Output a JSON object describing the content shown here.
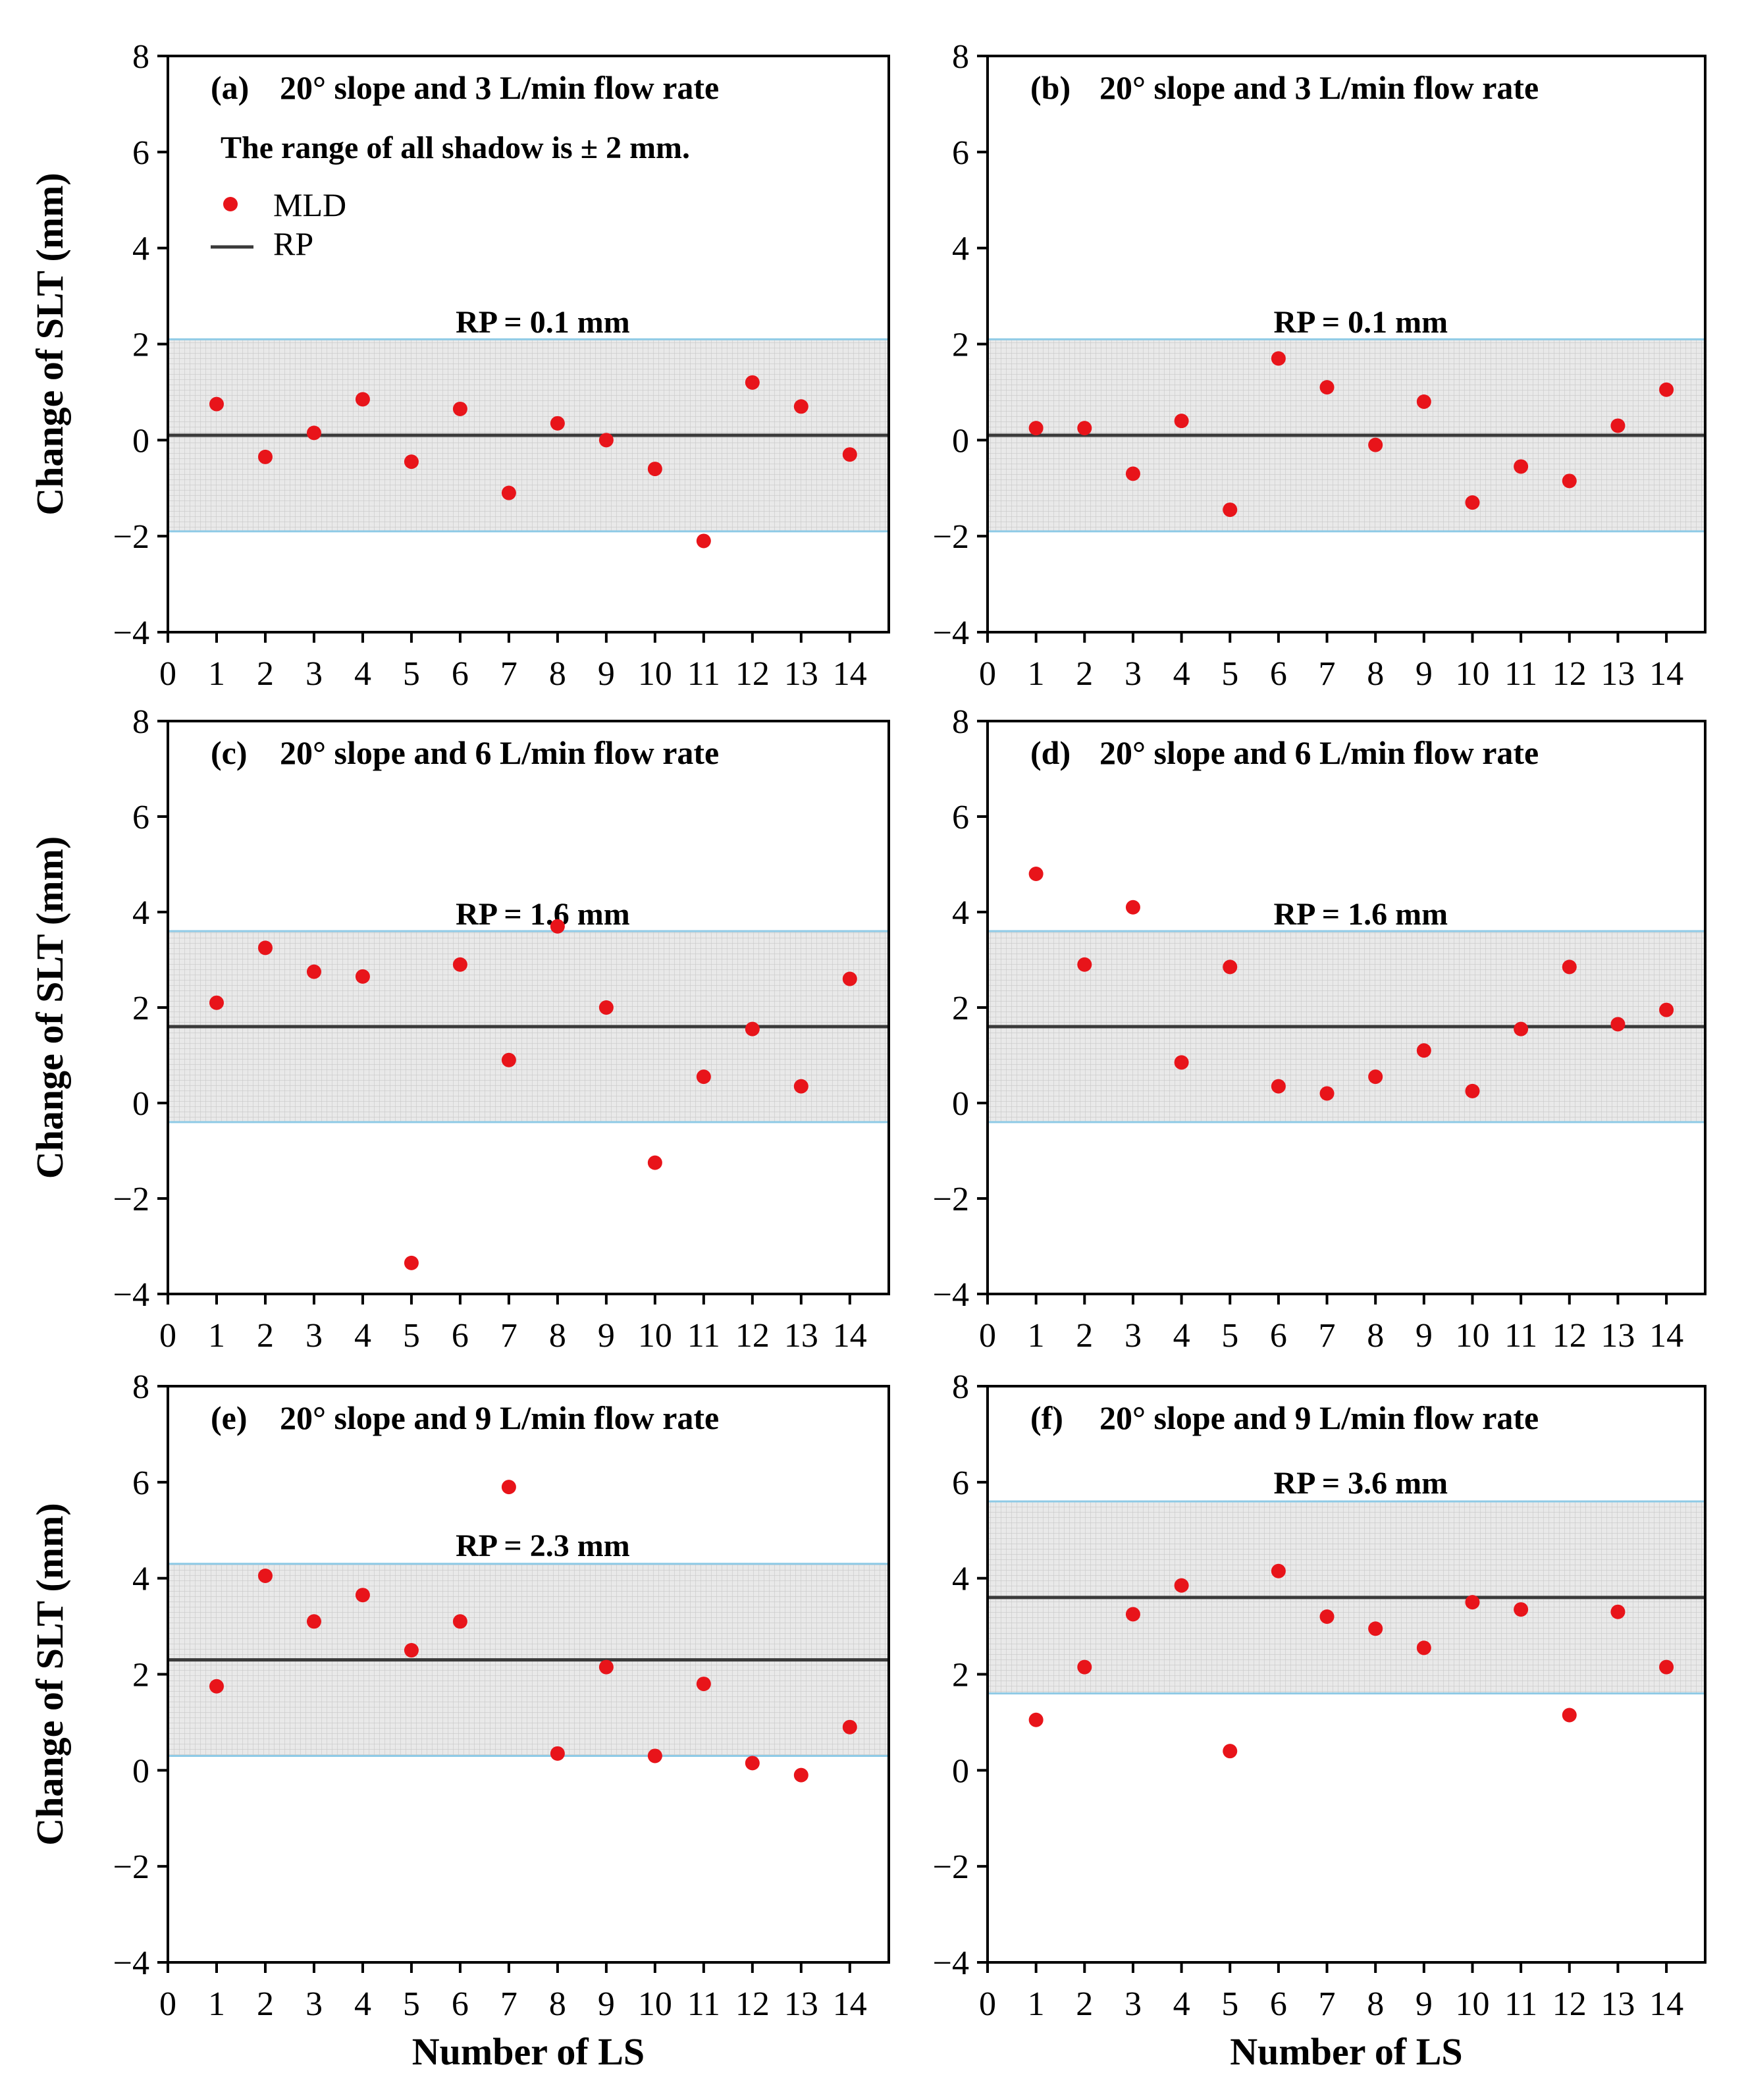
{
  "figure": {
    "xlabel": "Number of LS",
    "ylabel": "Change of SLT (mm)",
    "note": "The range of all shadow is ± 2 mm.",
    "legend": [
      {
        "label": "MLD",
        "marker": "dot",
        "color": "#e8141a"
      },
      {
        "label": "RP",
        "marker": "line",
        "color": "#3a3a3a"
      }
    ],
    "colors": {
      "point": "#e8141a",
      "rp_line": "#3a3a3a",
      "band_border": "#8ecae6",
      "band_fill": "#dedede"
    },
    "x_ticks": [
      "0",
      "1",
      "2",
      "3",
      "4",
      "5",
      "6",
      "7",
      "8",
      "9",
      "10",
      "11",
      "12",
      "13",
      "14"
    ],
    "y_ticks": [
      "8",
      "6",
      "4",
      "2",
      "0",
      "−2",
      "−4"
    ]
  },
  "chart_data": [
    {
      "type": "scatter",
      "panel": "(a)",
      "title": "20° slope and 3 L/min flow rate",
      "rp": 0.1,
      "rp_label": "RP = 0.1 mm",
      "band": [
        -1.9,
        2.1
      ],
      "xlim": [
        0,
        14.8
      ],
      "ylim": [
        -4,
        8
      ],
      "x": [
        1,
        2,
        3,
        4,
        5,
        6,
        7,
        8,
        9,
        10,
        11,
        12,
        13,
        14
      ],
      "values": [
        0.75,
        -0.35,
        0.15,
        0.85,
        -0.45,
        0.65,
        -1.1,
        0.35,
        0.0,
        -0.6,
        -2.1,
        1.2,
        0.7,
        -0.3
      ]
    },
    {
      "type": "scatter",
      "panel": "(b)",
      "title": "20° slope and 3 L/min flow rate",
      "rp": 0.1,
      "rp_label": "RP = 0.1 mm",
      "band": [
        -1.9,
        2.1
      ],
      "xlim": [
        0,
        14.8
      ],
      "ylim": [
        -4,
        8
      ],
      "x": [
        1,
        2,
        3,
        4,
        5,
        6,
        7,
        8,
        9,
        10,
        11,
        12,
        13,
        14
      ],
      "values": [
        0.25,
        0.25,
        -0.7,
        0.4,
        -1.45,
        1.7,
        1.1,
        -0.1,
        0.8,
        -1.3,
        -0.55,
        -0.85,
        0.3,
        1.05
      ]
    },
    {
      "type": "scatter",
      "panel": "(c)",
      "title": "20° slope and 6 L/min flow rate",
      "rp": 1.6,
      "rp_label": "RP = 1.6 mm",
      "band": [
        -0.4,
        3.6
      ],
      "xlim": [
        0,
        14.8
      ],
      "ylim": [
        -4,
        8
      ],
      "x": [
        1,
        2,
        3,
        4,
        5,
        6,
        7,
        8,
        9,
        10,
        11,
        12,
        13,
        14
      ],
      "values": [
        2.1,
        3.25,
        2.75,
        2.65,
        -3.35,
        2.9,
        0.9,
        3.7,
        2.0,
        -1.25,
        0.55,
        1.55,
        0.35,
        2.6
      ]
    },
    {
      "type": "scatter",
      "panel": "(d)",
      "title": "20° slope and 6 L/min flow rate",
      "rp": 1.6,
      "rp_label": "RP = 1.6 mm",
      "band": [
        -0.4,
        3.6
      ],
      "xlim": [
        0,
        14.8
      ],
      "ylim": [
        -4,
        8
      ],
      "x": [
        1,
        2,
        3,
        4,
        5,
        6,
        7,
        8,
        9,
        10,
        11,
        12,
        13,
        14
      ],
      "values": [
        4.8,
        2.9,
        4.1,
        0.85,
        2.85,
        0.35,
        0.2,
        0.55,
        1.1,
        0.25,
        1.55,
        2.85,
        1.65,
        1.95
      ]
    },
    {
      "type": "scatter",
      "panel": "(e)",
      "title": "20° slope and 9 L/min flow rate",
      "rp": 2.3,
      "rp_label": "RP = 2.3 mm",
      "band": [
        0.3,
        4.3
      ],
      "xlim": [
        0,
        14.8
      ],
      "ylim": [
        -4,
        8
      ],
      "x": [
        1,
        2,
        3,
        4,
        5,
        6,
        7,
        8,
        9,
        10,
        11,
        12,
        13,
        14
      ],
      "values": [
        1.75,
        4.05,
        3.1,
        3.65,
        2.5,
        3.1,
        5.9,
        0.35,
        2.15,
        0.3,
        1.8,
        0.15,
        -0.1,
        0.9
      ]
    },
    {
      "type": "scatter",
      "panel": "(f)",
      "title": "20° slope and 9 L/min flow rate",
      "rp": 3.6,
      "rp_label": "RP = 3.6 mm",
      "band": [
        1.6,
        5.6
      ],
      "xlim": [
        0,
        14.8
      ],
      "ylim": [
        -4,
        8
      ],
      "x": [
        1,
        2,
        3,
        4,
        5,
        6,
        7,
        8,
        9,
        10,
        11,
        12,
        13,
        14
      ],
      "values": [
        1.05,
        2.15,
        3.25,
        3.85,
        0.4,
        4.15,
        3.2,
        2.95,
        2.55,
        3.5,
        3.35,
        1.15,
        3.3,
        2.15
      ]
    }
  ]
}
